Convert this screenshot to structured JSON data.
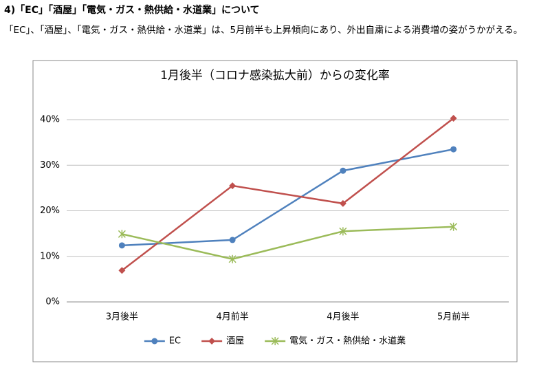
{
  "heading": "4)「EC」「酒屋」「電気・ガス・熱供給・水道業」について",
  "paragraph": "「EC」、「酒屋」、「電気・ガス・熱供給・水道業」は、5月前半も上昇傾向にあり、外出自粛による消費増の姿がうかがえる。",
  "chart_data": {
    "type": "line",
    "title": "1月後半（コロナ感染拡大前）からの変化率",
    "categories": [
      "3月後半",
      "4月前半",
      "4月後半",
      "5月前半"
    ],
    "series": [
      {
        "name": "EC",
        "color": "#4f81bd",
        "marker": "circle",
        "values": [
          12.4,
          13.6,
          28.8,
          33.5
        ]
      },
      {
        "name": "酒屋",
        "color": "#c0504d",
        "marker": "diamond",
        "values": [
          6.9,
          25.5,
          21.6,
          40.3
        ]
      },
      {
        "name": "電気・ガス・熱供給・水道業",
        "color": "#9bbb59",
        "marker": "star",
        "values": [
          14.9,
          9.4,
          15.5,
          16.5
        ]
      }
    ],
    "ylim": [
      0,
      40
    ],
    "yticks": [
      {
        "value": 0,
        "label": "0%"
      },
      {
        "value": 10,
        "label": "10%"
      },
      {
        "value": 20,
        "label": "20%"
      },
      {
        "value": 30,
        "label": "30%"
      },
      {
        "value": 40,
        "label": "40%"
      }
    ],
    "grid": true,
    "legend": "bottom"
  }
}
